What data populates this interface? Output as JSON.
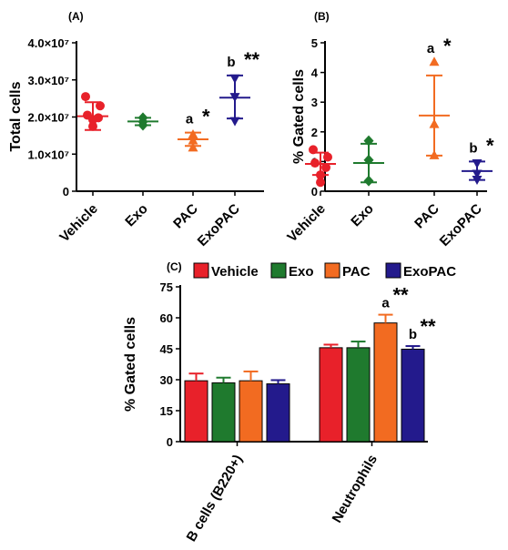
{
  "colors": {
    "Vehicle": "#e8212a",
    "Exo": "#1f7a2e",
    "PAC": "#f26b21",
    "ExoPAC": "#231a8c"
  },
  "chart_data": [
    {
      "panel": "(A)",
      "type": "scatter",
      "ylabel": "Total cells",
      "ylim": [
        0,
        40000000
      ],
      "yticks": [
        0,
        10000000,
        20000000,
        30000000,
        40000000
      ],
      "ytick_labels": [
        "0",
        "1.0×10⁷",
        "2.0×10⁷",
        "3.0×10⁷",
        "4.0×10⁷"
      ],
      "categories": [
        "Vehicle",
        "Exo",
        "PAC",
        "ExoPAC"
      ],
      "groups": [
        {
          "name": "Vehicle",
          "marker": "circle",
          "points": [
            25500000,
            23000000,
            20500000,
            19800000,
            19300000,
            17500000
          ],
          "mean": 20200000,
          "sd_low": 16500000,
          "sd_high": 24000000,
          "annotation": "",
          "stars": ""
        },
        {
          "name": "Exo",
          "marker": "diamond",
          "points": [
            19800000,
            18700000,
            17800000
          ],
          "mean": 18800000,
          "sd_low": 17800000,
          "sd_high": 19800000,
          "annotation": "",
          "stars": ""
        },
        {
          "name": "PAC",
          "marker": "triangle-up",
          "points": [
            15200000,
            13600000,
            11700000
          ],
          "mean": 14000000,
          "sd_low": 12200000,
          "sd_high": 15800000,
          "annotation": "a",
          "stars": "*"
        },
        {
          "name": "ExoPAC",
          "marker": "triangle-down",
          "points": [
            30500000,
            25500000,
            19000000
          ],
          "mean": 25200000,
          "sd_low": 19600000,
          "sd_high": 31200000,
          "annotation": "b",
          "stars": "**"
        }
      ]
    },
    {
      "panel": "(B)",
      "type": "scatter",
      "ylabel": "% Gated cells",
      "ylim": [
        0,
        5
      ],
      "yticks": [
        0,
        1,
        2,
        3,
        4,
        5
      ],
      "ytick_labels": [
        "0",
        "1",
        "2",
        "3",
        "4",
        "5"
      ],
      "categories": [
        "Vehicle",
        "Exo",
        "PAC",
        "ExoPAC"
      ],
      "groups": [
        {
          "name": "Vehicle",
          "marker": "circle",
          "points": [
            1.4,
            1.15,
            0.95,
            0.8,
            0.55,
            0.3
          ],
          "mean": 0.92,
          "sd_low": 0.55,
          "sd_high": 1.3,
          "annotation": "",
          "stars": ""
        },
        {
          "name": "Exo",
          "marker": "diamond",
          "points": [
            1.7,
            1.05,
            0.35
          ],
          "mean": 0.95,
          "sd_low": 0.3,
          "sd_high": 1.6,
          "annotation": "",
          "stars": ""
        },
        {
          "name": "PAC",
          "marker": "triangle-up",
          "points": [
            4.35,
            2.25,
            1.2
          ],
          "mean": 2.55,
          "sd_low": 1.2,
          "sd_high": 3.9,
          "annotation": "a",
          "stars": "*"
        },
        {
          "name": "ExoPAC",
          "marker": "triangle-down",
          "points": [
            0.95,
            0.6,
            0.4
          ],
          "mean": 0.68,
          "sd_low": 0.38,
          "sd_high": 1.0,
          "annotation": "b",
          "stars": "*"
        }
      ]
    },
    {
      "panel": "(C)",
      "type": "bar",
      "ylabel": "% Gated cells",
      "ylim": [
        0,
        75
      ],
      "yticks": [
        0,
        15,
        30,
        45,
        60,
        75
      ],
      "ytick_labels": [
        "0",
        "15",
        "30",
        "45",
        "60",
        "75"
      ],
      "categories": [
        "B cells (B220+)",
        "Neutrophils"
      ],
      "legend": [
        "Vehicle",
        "Exo",
        "PAC",
        "ExoPAC"
      ],
      "legend_position": "top",
      "series": [
        {
          "name": "Vehicle",
          "values": [
            29.5,
            45.5
          ],
          "errors": [
            3.5,
            1.5
          ]
        },
        {
          "name": "Exo",
          "values": [
            28.5,
            45.5
          ],
          "errors": [
            2.5,
            3.0
          ]
        },
        {
          "name": "PAC",
          "values": [
            29.5,
            57.5
          ],
          "errors": [
            4.5,
            4.0
          ]
        },
        {
          "name": "ExoPAC",
          "values": [
            28.0,
            44.8
          ],
          "errors": [
            1.8,
            1.5
          ]
        }
      ],
      "annotations": [
        {
          "series": "PAC",
          "category": "Neutrophils",
          "letter": "a",
          "stars": "**"
        },
        {
          "series": "ExoPAC",
          "category": "Neutrophils",
          "letter": "b",
          "stars": "**"
        }
      ]
    }
  ]
}
